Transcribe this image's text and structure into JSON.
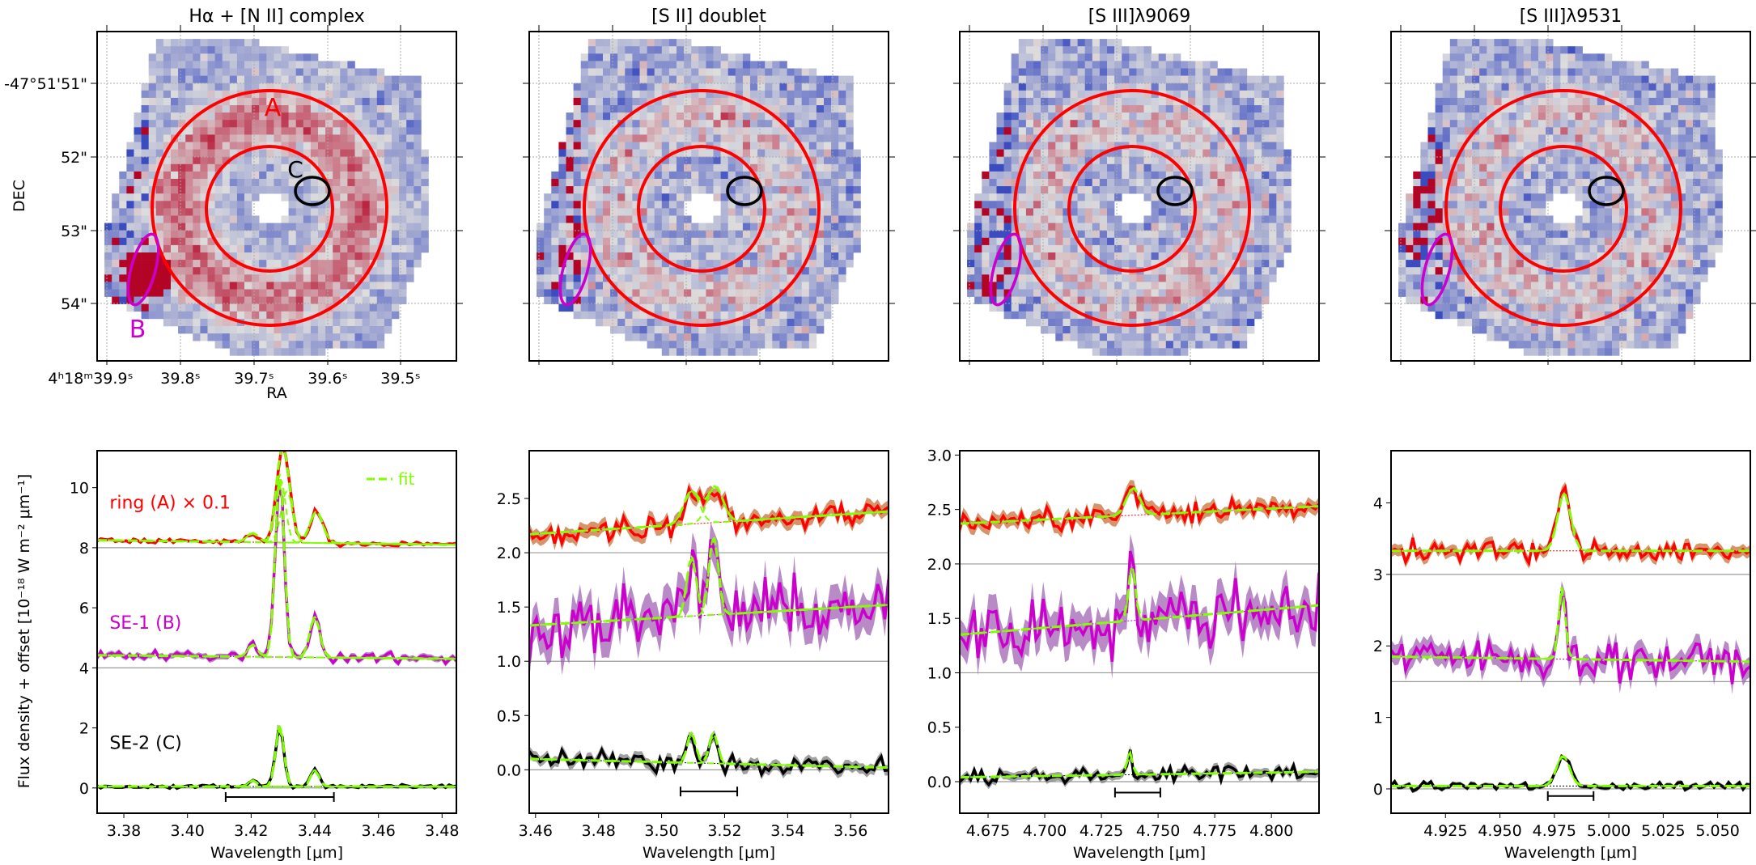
{
  "figure": {
    "colors": {
      "ring": "#ff0000",
      "ring_band": "#c8703a",
      "se1": "#cc00cc",
      "se1_band": "#a064b4",
      "se2": "#000000",
      "se2_band": "#808080",
      "fit": "#7fff00",
      "aperture_ring": "#ff0000",
      "aperture_b": "#cc00cc",
      "aperture_c": "#000000"
    },
    "map_colormap": "coolwarm",
    "maps": [
      {
        "title": "Hα + [N II] complex",
        "xlabel": "RA",
        "ylabel": "DEC",
        "ra_ticks": [
          "4h18m39.9s",
          "39.8s",
          "39.7s",
          "39.6s",
          "39.5s"
        ],
        "dec_ticks": [
          "-47°51'51\"",
          "52\"",
          "53\"",
          "54\""
        ],
        "labels": {
          "A": "A",
          "B": "B",
          "C": "C"
        },
        "show_tick_labels": true
      },
      {
        "title": "[S II] doublet",
        "show_tick_labels": false
      },
      {
        "title": "[S III]λ9069",
        "show_tick_labels": false
      },
      {
        "title": "[S III]λ9531",
        "show_tick_labels": false
      }
    ],
    "ylabel_spectra": "Flux density + offset [10⁻¹⁸ W m⁻² μm⁻¹]",
    "legend": {
      "fit_label": "fit",
      "placement": "top-right"
    }
  },
  "chart_data": [
    {
      "type": "line",
      "xlabel": "Wavelength [μm]",
      "xlim": [
        3.3716,
        3.4845
      ],
      "ylim": [
        -0.84,
        11.23
      ],
      "xticks": [
        3.38,
        3.4,
        3.42,
        3.44,
        3.46,
        3.48
      ],
      "xtick_labels": [
        "3.38",
        "3.40",
        "3.42",
        "3.44",
        "3.46",
        "3.48"
      ],
      "yticks": [
        0,
        2,
        4,
        6,
        8,
        10
      ],
      "ytick_labels": [
        "0",
        "2",
        "4",
        "6",
        "8",
        "10"
      ],
      "velocity_bar": [
        3.412,
        3.446,
        -0.3
      ],
      "series": [
        {
          "name": "ring (A) × 0.1",
          "key": "ring",
          "offset": 8,
          "continuum": [
            8.25,
            8.1
          ],
          "noise": 0.06,
          "lines": [
            [
              3.4205,
              0.3,
              0.0018
            ],
            [
              3.4292,
              2.1,
              0.0016
            ],
            [
              3.4312,
              1.7,
              0.0018
            ],
            [
              3.4405,
              1.05,
              0.002
            ]
          ],
          "label_pos": [
            3.3755,
            9.3
          ]
        },
        {
          "name": "SE-1 (B)",
          "key": "se1",
          "offset": 4,
          "continuum": [
            4.42,
            4.3
          ],
          "noise": 0.12,
          "lines": [
            [
              3.4205,
              0.4,
              0.0015
            ],
            [
              3.429,
              6.1,
              0.0014
            ],
            [
              3.44,
              1.35,
              0.0016
            ]
          ],
          "label_pos": [
            3.3755,
            5.3
          ]
        },
        {
          "name": "SE-2 (C)",
          "key": "se2",
          "offset": 0,
          "continuum": [
            0.05,
            0.05
          ],
          "noise": 0.05,
          "lines": [
            [
              3.4205,
              0.2,
              0.0013
            ],
            [
              3.429,
              2.0,
              0.0013
            ],
            [
              3.44,
              0.55,
              0.0013
            ]
          ],
          "label_pos": [
            3.3755,
            1.3
          ]
        }
      ]
    },
    {
      "type": "line",
      "xlabel": "Wavelength [μm]",
      "xlim": [
        3.458,
        3.572
      ],
      "ylim": [
        -0.4,
        2.94
      ],
      "xticks": [
        3.46,
        3.48,
        3.5,
        3.52,
        3.54,
        3.56
      ],
      "xtick_labels": [
        "3.46",
        "3.48",
        "3.50",
        "3.52",
        "3.54",
        "3.56"
      ],
      "yticks": [
        0,
        0.5,
        1,
        1.5,
        2,
        2.5
      ],
      "ytick_labels": [
        "0.0",
        "0.5",
        "1.0",
        "1.5",
        "2.0",
        "2.5"
      ],
      "velocity_bar": [
        3.506,
        3.524,
        -0.2
      ],
      "series": [
        {
          "key": "ring",
          "offset": 2,
          "continuum": [
            2.17,
            2.38
          ],
          "noise": 0.08,
          "lines": [
            [
              3.5095,
              0.3,
              0.0025
            ],
            [
              3.517,
              0.33,
              0.0025
            ]
          ]
        },
        {
          "key": "se1",
          "offset": 1,
          "continuum": [
            1.33,
            1.52
          ],
          "noise": 0.2,
          "lines": [
            [
              3.5095,
              0.55,
              0.0015
            ],
            [
              3.5165,
              0.72,
              0.0015
            ]
          ]
        },
        {
          "key": "se2",
          "offset": 0,
          "continuum": [
            0.1,
            0.02
          ],
          "noise": 0.06,
          "lines": [
            [
              3.5095,
              0.28,
              0.0013
            ],
            [
              3.5165,
              0.28,
              0.0013
            ]
          ]
        }
      ]
    },
    {
      "type": "line",
      "xlabel": "Wavelength [μm]",
      "xlim": [
        4.6625,
        4.821
      ],
      "ylim": [
        -0.29,
        3.04
      ],
      "xticks": [
        4.675,
        4.7,
        4.725,
        4.75,
        4.775,
        4.8
      ],
      "xtick_labels": [
        "4.675",
        "4.700",
        "4.725",
        "4.750",
        "4.775",
        "4.800"
      ],
      "yticks": [
        0,
        0.5,
        1,
        1.5,
        2,
        2.5,
        3
      ],
      "ytick_labels": [
        "0.0",
        "0.5",
        "1.0",
        "1.5",
        "2.0",
        "2.5",
        "3.0"
      ],
      "velocity_bar": [
        4.731,
        4.751,
        -0.1
      ],
      "series": [
        {
          "key": "ring",
          "offset": 2,
          "continuum": [
            2.37,
            2.53
          ],
          "noise": 0.08,
          "lines": [
            [
              4.739,
              0.25,
              0.003
            ]
          ]
        },
        {
          "key": "se1",
          "offset": 1,
          "continuum": [
            1.35,
            1.62
          ],
          "noise": 0.2,
          "lines": [
            [
              4.7385,
              0.5,
              0.0015
            ]
          ]
        },
        {
          "key": "se2",
          "offset": 0,
          "continuum": [
            0.04,
            0.09
          ],
          "noise": 0.05,
          "lines": [
            [
              4.7375,
              0.2,
              0.0012
            ]
          ]
        }
      ]
    },
    {
      "type": "line",
      "xlabel": "Wavelength [μm]",
      "xlim": [
        4.9,
        5.065
      ],
      "ylim": [
        -0.34,
        4.73
      ],
      "xticks": [
        4.925,
        4.95,
        4.975,
        5.0,
        5.025,
        5.05
      ],
      "xtick_labels": [
        "4.925",
        "4.950",
        "4.975",
        "5.000",
        "5.025",
        "5.050"
      ],
      "yticks": [
        0,
        1,
        2,
        3,
        4
      ],
      "ytick_labels": [
        "0",
        "1",
        "2",
        "3",
        "4"
      ],
      "velocity_bar": [
        4.972,
        4.993,
        -0.1
      ],
      "series": [
        {
          "key": "ring",
          "offset": 3,
          "continuum": [
            3.33,
            3.33
          ],
          "noise": 0.1,
          "lines": [
            [
              4.9795,
              0.8,
              0.003
            ]
          ]
        },
        {
          "key": "se1",
          "offset": 1.5,
          "continuum": [
            1.85,
            1.78
          ],
          "noise": 0.18,
          "lines": [
            [
              4.9785,
              1.0,
              0.0015
            ]
          ]
        },
        {
          "key": "se2",
          "offset": 0,
          "continuum": [
            0.04,
            0.04
          ],
          "noise": 0.04,
          "lines": [
            [
              4.979,
              0.42,
              0.003
            ]
          ]
        }
      ]
    }
  ]
}
